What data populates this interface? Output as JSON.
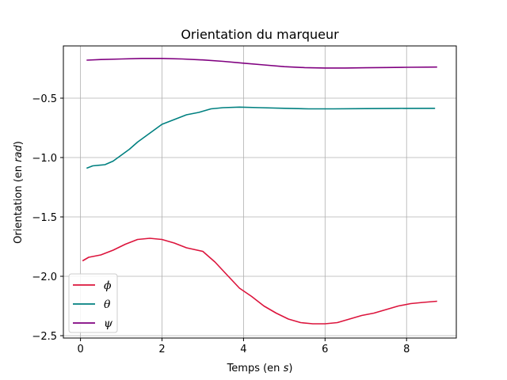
{
  "chart_data": {
    "type": "line",
    "title": "Orientation du marqueur",
    "xlabel_prefix": "Temps (en ",
    "xlabel_unit": "s",
    "xlabel_suffix": ")",
    "ylabel_prefix": "Orientation (en ",
    "ylabel_unit": "rad",
    "ylabel_suffix": ")",
    "xlim": [
      -0.42,
      9.22
    ],
    "ylim": [
      -2.52,
      -0.06
    ],
    "xticks": [
      0,
      2,
      4,
      6,
      8
    ],
    "yticks": [
      -0.5,
      -1.0,
      -1.5,
      -2.0,
      -2.5
    ],
    "xtick_labels": [
      "0",
      "2",
      "4",
      "6",
      "8"
    ],
    "ytick_labels": [
      "−0.5",
      "−1.0",
      "−1.5",
      "−2.0",
      "−2.5"
    ],
    "grid": true,
    "legend_position": "lower-left",
    "series": [
      {
        "name": "ϕ",
        "color": "#dc143c",
        "x": [
          0.05,
          0.2,
          0.5,
          0.8,
          1.1,
          1.4,
          1.7,
          2.0,
          2.3,
          2.6,
          3.0,
          3.3,
          3.6,
          3.9,
          4.2,
          4.5,
          4.8,
          5.1,
          5.4,
          5.7,
          6.0,
          6.3,
          6.6,
          6.9,
          7.2,
          7.5,
          7.8,
          8.1,
          8.4,
          8.75
        ],
        "y": [
          -1.87,
          -1.84,
          -1.82,
          -1.78,
          -1.73,
          -1.69,
          -1.68,
          -1.69,
          -1.72,
          -1.76,
          -1.79,
          -1.88,
          -1.99,
          -2.1,
          -2.17,
          -2.25,
          -2.31,
          -2.36,
          -2.39,
          -2.4,
          -2.4,
          -2.39,
          -2.36,
          -2.33,
          -2.31,
          -2.28,
          -2.25,
          -2.23,
          -2.22,
          -2.21
        ]
      },
      {
        "name": "θ",
        "color": "#008080",
        "x": [
          0.15,
          0.3,
          0.6,
          0.8,
          1.0,
          1.2,
          1.4,
          1.6,
          1.8,
          2.0,
          2.3,
          2.6,
          2.9,
          3.2,
          3.5,
          3.9,
          4.4,
          5.0,
          5.6,
          6.2,
          7.0,
          7.8,
          8.7
        ],
        "y": [
          -1.09,
          -1.07,
          -1.06,
          -1.03,
          -0.98,
          -0.93,
          -0.87,
          -0.82,
          -0.77,
          -0.72,
          -0.68,
          -0.64,
          -0.62,
          -0.59,
          -0.58,
          -0.575,
          -0.58,
          -0.585,
          -0.59,
          -0.59,
          -0.588,
          -0.586,
          -0.585
        ]
      },
      {
        "name": "ψ",
        "color": "#800080",
        "x": [
          0.15,
          0.5,
          1.0,
          1.5,
          2.0,
          2.5,
          3.0,
          3.5,
          4.0,
          4.5,
          5.0,
          5.5,
          6.0,
          6.5,
          7.0,
          7.5,
          8.0,
          8.75
        ],
        "y": [
          -0.18,
          -0.175,
          -0.17,
          -0.165,
          -0.165,
          -0.17,
          -0.178,
          -0.19,
          -0.205,
          -0.22,
          -0.235,
          -0.243,
          -0.246,
          -0.246,
          -0.244,
          -0.242,
          -0.24,
          -0.238
        ]
      }
    ]
  }
}
